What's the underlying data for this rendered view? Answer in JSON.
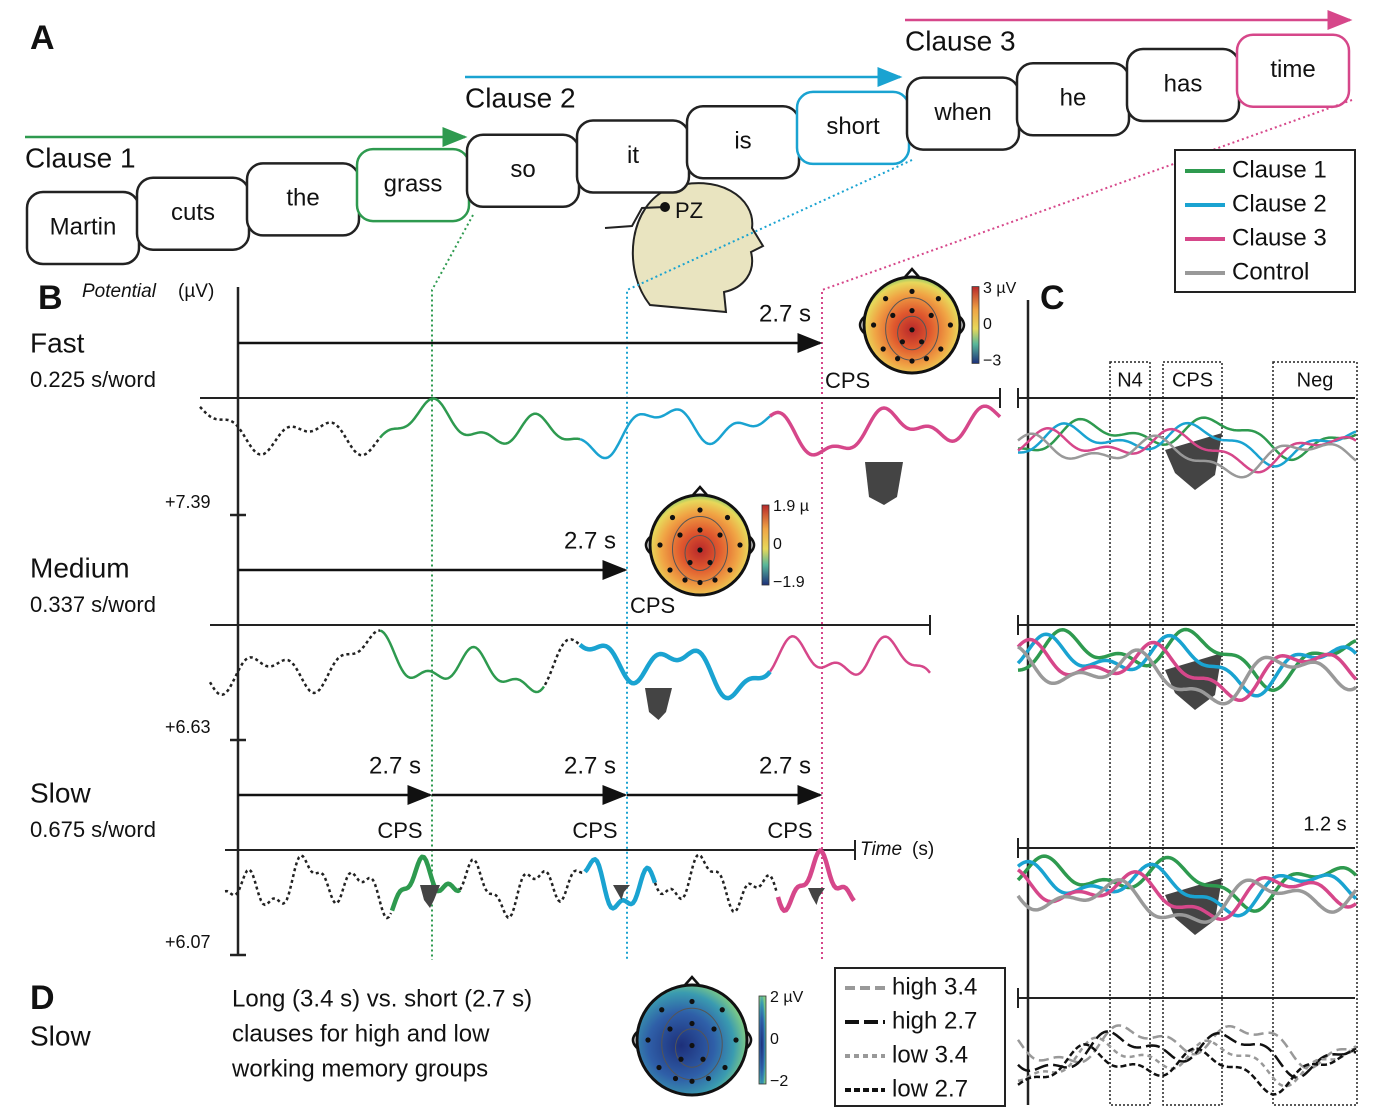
{
  "panel_a": {
    "label": "A",
    "clauses": [
      {
        "name": "Clause 1",
        "color": "#2e9a4f",
        "words": [
          "Martin",
          "cuts",
          "the",
          "grass"
        ]
      },
      {
        "name": "Clause 2",
        "color": "#1aa3d1",
        "words": [
          "so",
          "it",
          "is",
          "short"
        ]
      },
      {
        "name": "Clause 3",
        "color": "#d6478a",
        "words": [
          "when",
          "he",
          "has",
          "time"
        ]
      }
    ],
    "electrode": "PZ"
  },
  "legend": [
    {
      "label": "Clause 1",
      "color": "#2e9a4f"
    },
    {
      "label": "Clause 2",
      "color": "#1aa3d1"
    },
    {
      "label": "Clause 3",
      "color": "#d6478a"
    },
    {
      "label": "Control",
      "color": "#999999"
    }
  ],
  "panel_b": {
    "label": "B",
    "y_label": "Potential",
    "y_unit": "(µV)",
    "x_label": "Time",
    "x_unit": "(s)",
    "conditions": [
      {
        "name": "Fast",
        "rate": "0.225 s/word",
        "scale": "+7.39",
        "intervals": [
          "2.7 s"
        ],
        "cps": [
          "CPS"
        ],
        "topomap": {
          "max": "3 µV",
          "mid": "0",
          "min": "−3"
        }
      },
      {
        "name": "Medium",
        "rate": "0.337 s/word",
        "scale": "+6.63",
        "intervals": [
          "2.7 s"
        ],
        "cps": [
          "CPS"
        ],
        "topomap": {
          "max": "1.9 µ",
          "mid": "0",
          "min": "−1.9"
        }
      },
      {
        "name": "Slow",
        "rate": "0.675 s/word",
        "scale": "+6.07",
        "intervals": [
          "2.7 s",
          "2.7 s",
          "2.7 s"
        ],
        "cps": [
          "CPS",
          "CPS",
          "CPS"
        ]
      }
    ]
  },
  "panel_c": {
    "label": "C",
    "windows": [
      "N4",
      "CPS",
      "Neg"
    ],
    "time_label": "1.2 s"
  },
  "panel_d": {
    "label": "D",
    "condition": "Slow",
    "description": [
      "Long (3.4 s) vs. short (2.7 s)",
      "clauses for high and low",
      "working memory groups"
    ],
    "topomap": {
      "max": "2 µV",
      "mid": "0",
      "min": "−2"
    },
    "legend": [
      {
        "label": "high 3.4",
        "color": "#999999"
      },
      {
        "label": "high 2.7",
        "color": "#111111"
      },
      {
        "label": "low 3.4",
        "color": "#999999"
      },
      {
        "label": "low 2.7",
        "color": "#111111"
      }
    ]
  }
}
